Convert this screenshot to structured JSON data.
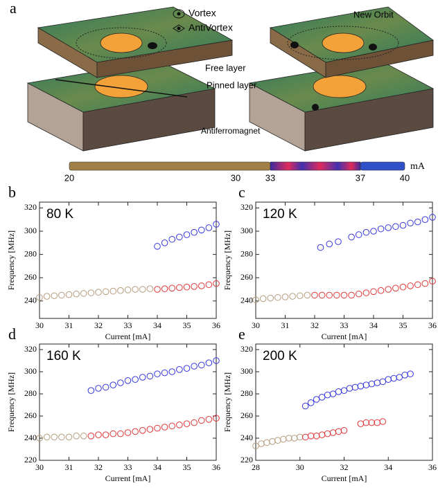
{
  "diagram": {
    "panel_label": "a",
    "legend_vortex": "Vortex",
    "legend_antivortex": "AntiVortex",
    "new_orbit": "New Orbit",
    "free_layer": "Free layer",
    "pinned_layer": "Pinned layer",
    "antiferromagnet": "Antiferromagnet",
    "scale_labels": [
      "20",
      "30",
      "33",
      "37",
      "40"
    ],
    "scale_unit": "mA"
  },
  "chart_data": [
    {
      "type": "scatter",
      "panel_label": "b",
      "annotation": "80 K",
      "x_label": "Current [mA]",
      "y_label": "Frequency [MHz]",
      "xlim": [
        30,
        36
      ],
      "xticks": [
        30,
        31,
        32,
        33,
        34,
        35,
        36
      ],
      "ylim": [
        225,
        325
      ],
      "yticks": [
        240,
        260,
        280,
        300,
        320
      ],
      "series": [
        {
          "color": "#b49b7c",
          "x": [
            30,
            30.25,
            30.5,
            30.75,
            31,
            31.25,
            31.5,
            31.75,
            32,
            32.25,
            32.5,
            32.75,
            33,
            33.25,
            33.5,
            33.75
          ],
          "values": [
            243,
            244,
            244.5,
            245,
            245.5,
            246,
            246.5,
            247,
            247.5,
            248,
            248.5,
            249,
            249.5,
            250,
            250,
            250.5
          ]
        },
        {
          "color": "#e03535",
          "x": [
            34,
            34.25,
            34.5,
            34.75,
            35,
            35.25,
            35.5,
            35.75,
            36
          ],
          "values": [
            250,
            250.5,
            251,
            251.5,
            252,
            252.5,
            253,
            254,
            255
          ]
        },
        {
          "color": "#3535e0",
          "x": [
            34,
            34.25,
            34.5,
            34.75,
            35,
            35.25,
            35.5,
            35.75,
            36
          ],
          "values": [
            287,
            290,
            293,
            295,
            297,
            299,
            301,
            303,
            306
          ]
        }
      ]
    },
    {
      "type": "scatter",
      "panel_label": "c",
      "annotation": "120 K",
      "x_label": "Current [mA]",
      "y_label": "Frequency [MHz]",
      "xlim": [
        30,
        36
      ],
      "xticks": [
        30,
        31,
        32,
        33,
        34,
        35,
        36
      ],
      "ylim": [
        225,
        325
      ],
      "yticks": [
        240,
        260,
        280,
        300,
        320
      ],
      "series": [
        {
          "color": "#b49b7c",
          "x": [
            30,
            30.25,
            30.5,
            30.75,
            31,
            31.25,
            31.5,
            31.75
          ],
          "values": [
            241,
            242,
            242.5,
            243,
            243.5,
            244,
            244.5,
            245
          ]
        },
        {
          "color": "#e03535",
          "x": [
            32,
            32.25,
            32.5,
            32.75,
            33,
            33.25,
            33.5,
            33.75,
            34,
            34.25,
            34.5,
            34.75,
            35,
            35.25,
            35.5,
            35.75,
            36
          ],
          "values": [
            245,
            245,
            245,
            245,
            245,
            245,
            246,
            247,
            248,
            249,
            250,
            251,
            252,
            253,
            254,
            255,
            257
          ]
        },
        {
          "color": "#3535e0",
          "x": [
            32.2,
            32.5,
            32.8,
            33.25,
            33.5,
            33.75,
            34,
            34.25,
            34.5,
            34.75,
            35,
            35.25,
            35.5,
            35.75,
            36
          ],
          "values": [
            286,
            289,
            291,
            295,
            297,
            299,
            300,
            302,
            303,
            304,
            305,
            307,
            308,
            310,
            312
          ]
        }
      ]
    },
    {
      "type": "scatter",
      "panel_label": "d",
      "annotation": "160 K",
      "x_label": "Current [mA]",
      "y_label": "Frequency [MHz]",
      "xlim": [
        30,
        36
      ],
      "xticks": [
        30,
        31,
        32,
        33,
        34,
        35,
        36
      ],
      "ylim": [
        220,
        325
      ],
      "yticks": [
        220,
        240,
        260,
        280,
        300,
        320
      ],
      "series": [
        {
          "color": "#b49b7c",
          "x": [
            30,
            30.25,
            30.5,
            30.75,
            31,
            31.25,
            31.5
          ],
          "values": [
            240,
            241,
            241,
            241,
            241,
            242,
            242
          ]
        },
        {
          "color": "#e03535",
          "x": [
            31.75,
            32,
            32.25,
            32.5,
            32.75,
            33,
            33.25,
            33.5,
            33.75,
            34,
            34.25,
            34.5,
            34.75,
            35,
            35.25,
            35.5,
            35.75,
            36
          ],
          "values": [
            242,
            243,
            243,
            244,
            244,
            245,
            246,
            247,
            248,
            249,
            250,
            251,
            252,
            253,
            254,
            256,
            257,
            258
          ]
        },
        {
          "color": "#3535e0",
          "x": [
            31.75,
            32,
            32.25,
            32.5,
            32.75,
            33,
            33.25,
            33.5,
            33.75,
            34,
            34.25,
            34.5,
            34.75,
            35,
            35.25,
            35.5,
            35.75,
            36
          ],
          "values": [
            283,
            285,
            286,
            288,
            290,
            292,
            293,
            295,
            296,
            298,
            299,
            300,
            302,
            303,
            305,
            306,
            308,
            310
          ]
        }
      ]
    },
    {
      "type": "scatter",
      "panel_label": "e",
      "annotation": "200 K",
      "x_label": "Current [mA]",
      "y_label": "Frequency [MHz]",
      "xlim": [
        28,
        36
      ],
      "xticks": [
        28,
        30,
        32,
        34,
        36
      ],
      "ylim": [
        220,
        325
      ],
      "yticks": [
        220,
        240,
        260,
        280,
        300,
        320
      ],
      "series": [
        {
          "color": "#b49b7c",
          "x": [
            28,
            28.25,
            28.5,
            28.75,
            29,
            29.25,
            29.5,
            29.75,
            30
          ],
          "values": [
            233,
            235,
            236,
            237,
            238,
            239,
            240,
            240,
            241
          ]
        },
        {
          "color": "#e03535",
          "x": [
            30.25,
            30.5,
            30.75,
            31,
            31.25,
            31.5,
            31.75,
            32
          ],
          "values": [
            241,
            242,
            242,
            243,
            244,
            245,
            246,
            247
          ]
        },
        {
          "color": "#e03535",
          "x": [
            32.75,
            33,
            33.25,
            33.5,
            33.75
          ],
          "values": [
            253,
            254,
            254,
            254,
            255
          ]
        },
        {
          "color": "#3535e0",
          "x": [
            30.25,
            30.5,
            30.75,
            31,
            31.25,
            31.5,
            31.75,
            32,
            32.25,
            32.5,
            32.75,
            33,
            33.25,
            33.5,
            33.75,
            34,
            34.25,
            34.5,
            34.75,
            35
          ],
          "values": [
            269,
            272,
            275,
            277,
            279,
            280,
            282,
            283,
            285,
            286,
            287,
            288,
            289,
            290,
            291,
            293,
            294,
            295,
            297,
            298
          ]
        }
      ]
    }
  ]
}
